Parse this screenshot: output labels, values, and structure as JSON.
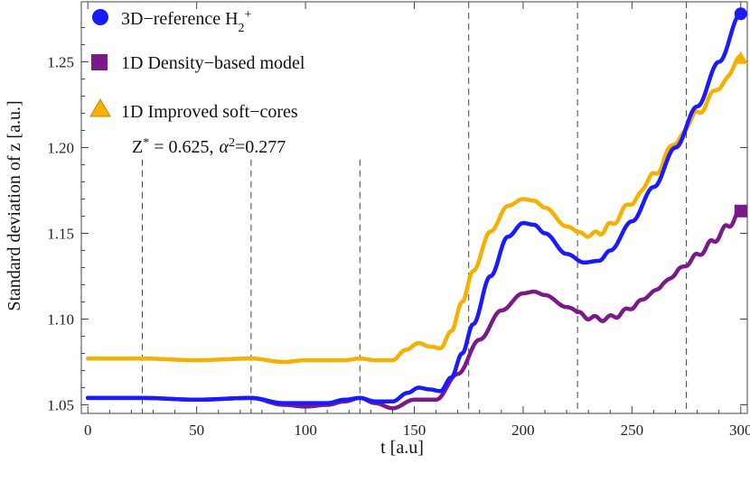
{
  "chart_data": {
    "type": "line",
    "title": "",
    "xlabel": "t  [a.u]",
    "ylabel": "Standard  deviation  of  z  [a.u.]",
    "xlim": [
      -3,
      303
    ],
    "ylim": [
      1.045,
      1.285
    ],
    "xticks": [
      0,
      50,
      100,
      150,
      200,
      250,
      300
    ],
    "yticks": [
      1.05,
      1.1,
      1.15,
      1.2,
      1.25
    ],
    "ytick_labels": [
      "1.05",
      "1.10",
      "1.15",
      "1.20",
      "1.25"
    ],
    "vlines": [
      25,
      75,
      125,
      175,
      225,
      275
    ],
    "annotation": {
      "z_label": "Z",
      "z_sup": "*",
      "z_value": " = 0.625,",
      "alpha_label": "α",
      "alpha_sup": "2",
      "alpha_value": "=0.277"
    },
    "series": [
      {
        "name": "3D−reference H",
        "name_sub": "2",
        "name_sup": "+",
        "color": "#1a1aff",
        "marker": "circle",
        "x": [
          0,
          25,
          50,
          75,
          90,
          100,
          110,
          118,
          125,
          132,
          140,
          147,
          152,
          157,
          162,
          167,
          172,
          177,
          185,
          193,
          200,
          205,
          210,
          220,
          228,
          235,
          240,
          250,
          260,
          270,
          280,
          290,
          300
        ],
        "y": [
          1.054,
          1.054,
          1.053,
          1.054,
          1.051,
          1.051,
          1.051,
          1.053,
          1.054,
          1.052,
          1.052,
          1.057,
          1.06,
          1.059,
          1.058,
          1.066,
          1.08,
          1.097,
          1.125,
          1.148,
          1.156,
          1.155,
          1.15,
          1.138,
          1.133,
          1.134,
          1.14,
          1.157,
          1.177,
          1.2,
          1.224,
          1.25,
          1.278
        ]
      },
      {
        "name": "1D Density−based model",
        "color": "#7a1a8a",
        "marker": "square",
        "x": [
          0,
          25,
          50,
          75,
          90,
          100,
          110,
          118,
          125,
          132,
          140,
          150,
          160,
          170,
          180,
          190,
          200,
          205,
          210,
          220,
          230,
          237,
          243,
          250,
          258,
          265,
          272,
          280,
          287,
          294,
          300
        ],
        "y": [
          1.054,
          1.054,
          1.053,
          1.054,
          1.05,
          1.049,
          1.05,
          1.052,
          1.054,
          1.051,
          1.048,
          1.053,
          1.053,
          1.068,
          1.088,
          1.105,
          1.115,
          1.116,
          1.114,
          1.107,
          1.101,
          1.1,
          1.102,
          1.107,
          1.114,
          1.121,
          1.129,
          1.137,
          1.145,
          1.154,
          1.163
        ],
        "wiggle": true
      },
      {
        "name": "1D Improved soft−cores",
        "color": "#f5b000",
        "marker": "triangle",
        "x": [
          0,
          25,
          50,
          75,
          90,
          100,
          110,
          118,
          125,
          132,
          140,
          146,
          152,
          157,
          162,
          167,
          172,
          177,
          185,
          193,
          200,
          205,
          210,
          220,
          228,
          235,
          240,
          250,
          260,
          270,
          280,
          290,
          300
        ],
        "y": [
          1.077,
          1.077,
          1.076,
          1.077,
          1.075,
          1.076,
          1.076,
          1.076,
          1.077,
          1.076,
          1.076,
          1.082,
          1.086,
          1.084,
          1.083,
          1.093,
          1.11,
          1.128,
          1.151,
          1.166,
          1.17,
          1.169,
          1.165,
          1.154,
          1.149,
          1.15,
          1.155,
          1.168,
          1.184,
          1.203,
          1.22,
          1.235,
          1.252
        ],
        "wiggle": true
      }
    ]
  }
}
